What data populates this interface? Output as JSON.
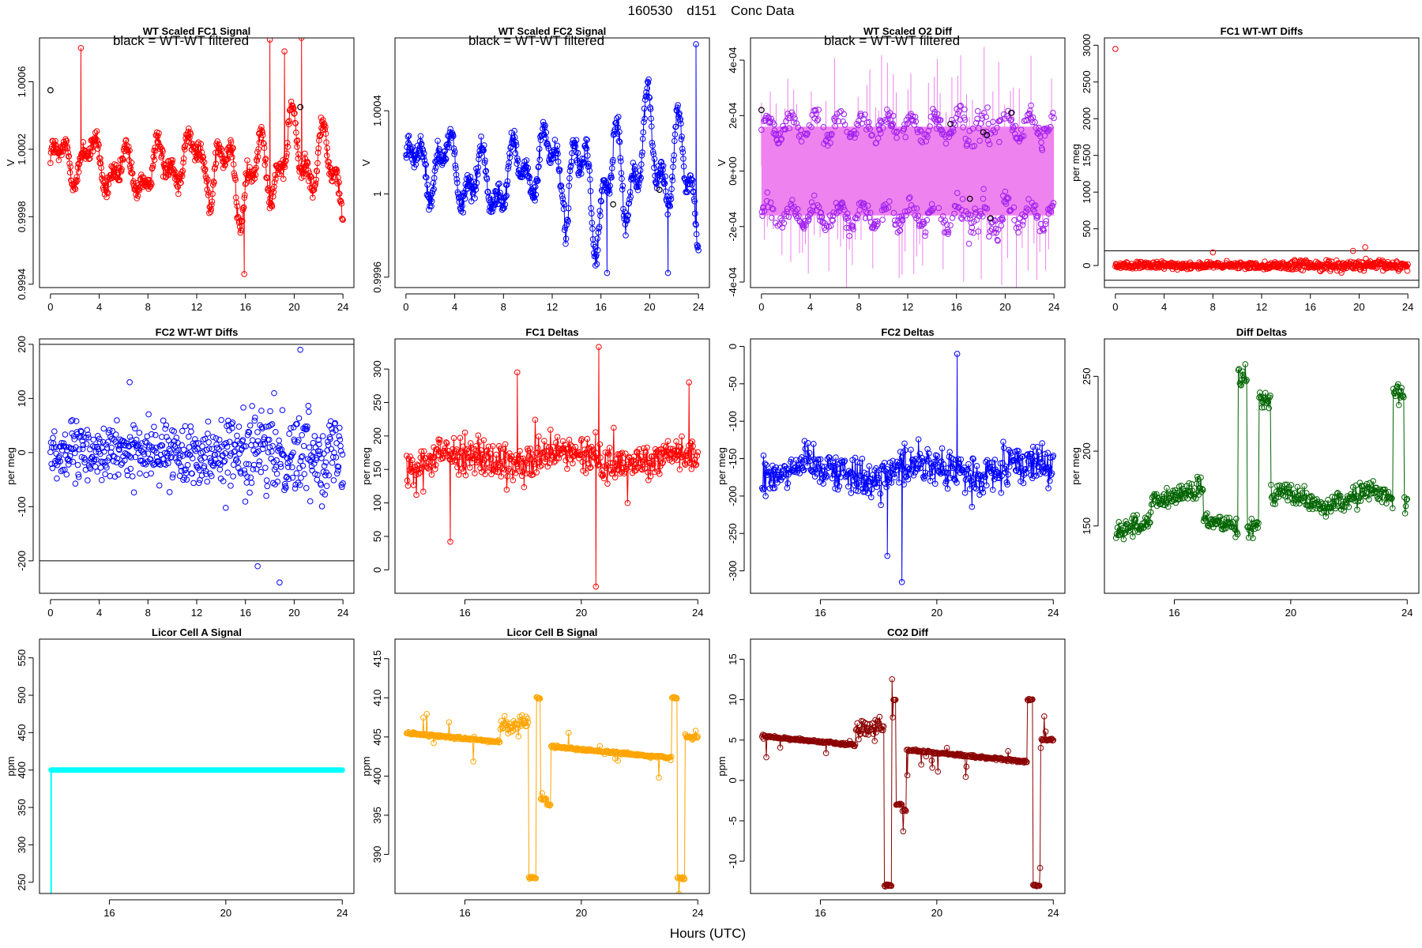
{
  "figure": {
    "title_parts": [
      "160530",
      "d151",
      "Conc Data"
    ],
    "xlabel": "Hours (UTC)"
  },
  "chart_data": [
    {
      "id": "p1",
      "type": "scatter",
      "title": "WT Scaled FC1 Signal",
      "annotation": "black = WT-WT filtered",
      "ylabel": "V",
      "color": "#ff0000",
      "filtered_color": "#000000",
      "xlim": [
        -0.9,
        24.9
      ],
      "ylim": [
        0.99938,
        1.00086
      ],
      "xticks": [
        0,
        4,
        8,
        12,
        16,
        20,
        24
      ],
      "yticks": [
        0.9994,
        0.9998,
        1.0002,
        1.0006
      ],
      "series": {
        "style": "osc",
        "x_start": 0,
        "x_end": 24,
        "n": 600,
        "base": 1.0001,
        "amp": 0.00022,
        "noise": 6e-05,
        "spikes": [
          [
            2.5,
            1.0008
          ],
          [
            18,
            1.00085
          ],
          [
            20.6,
            1.00086
          ],
          [
            19.2,
            1.00078
          ],
          [
            15.9,
            0.99946
          ]
        ]
      },
      "filtered_points": [
        [
          0,
          1.00055
        ],
        [
          20.5,
          1.00045
        ]
      ],
      "hlines": []
    },
    {
      "id": "p2",
      "type": "scatter",
      "title": "WT Scaled FC2 Signal",
      "annotation": "black = WT-WT filtered",
      "ylabel": "V",
      "color": "#0000ff",
      "filtered_color": "#000000",
      "xlim": [
        -0.9,
        24.9
      ],
      "ylim": [
        0.99955,
        1.00075
      ],
      "xticks": [
        0,
        4,
        8,
        12,
        16,
        20,
        24
      ],
      "yticks": [
        0.9996,
        1.0,
        1.0004
      ],
      "series": {
        "style": "osc",
        "x_start": 0,
        "x_end": 24,
        "n": 600,
        "base": 1.0001,
        "amp": 0.00025,
        "noise": 5e-05,
        "spikes": [
          [
            23.8,
            1.00072
          ],
          [
            16.5,
            0.99962
          ],
          [
            21.5,
            0.99962
          ]
        ]
      },
      "filtered_points": [
        [
          17,
          0.99995
        ],
        [
          20.8,
          1.00002
        ]
      ],
      "hlines": []
    },
    {
      "id": "p3",
      "type": "scatter",
      "title": "WT Scaled O2 Diff",
      "annotation": "black = WT-WT filtered",
      "ylabel": "V",
      "color": "#a020f0",
      "filtered_color": "#000000",
      "band_color": "#ee82ee",
      "xlim": [
        -0.9,
        24.9
      ],
      "ylim": [
        -0.00042,
        0.00048
      ],
      "xticks": [
        0,
        4,
        8,
        12,
        16,
        20,
        24
      ],
      "yticks": [
        -0.0004,
        -0.0002,
        0,
        0.0002,
        0.0004
      ],
      "ytick_labels": [
        "-4e-04",
        "-2e-04",
        "0e+00",
        "2e-04",
        "4e-04"
      ],
      "series": {
        "style": "band",
        "x_start": 0,
        "x_end": 24,
        "n": 600,
        "upper": 0.00016,
        "lower": -0.00016,
        "noise": 3e-05
      },
      "filtered_points": [
        [
          0,
          0.00022
        ],
        [
          15.5,
          0.00017
        ],
        [
          18.2,
          0.00014
        ],
        [
          18.5,
          0.00013
        ],
        [
          20.5,
          0.00021
        ],
        [
          17.1,
          -0.0001
        ],
        [
          18.8,
          -0.00017
        ]
      ],
      "hlines": []
    },
    {
      "id": "p4",
      "type": "scatter",
      "title": "FC1 WT-WT Diffs",
      "ylabel": "per meg",
      "color": "#ff0000",
      "xlim": [
        -0.9,
        24.9
      ],
      "ylim": [
        -300,
        3100
      ],
      "xticks": [
        0,
        4,
        8,
        12,
        16,
        20,
        24
      ],
      "yticks": [
        0,
        500,
        1000,
        1500,
        2000,
        2500,
        3000
      ],
      "series": {
        "style": "scatter",
        "x_start": 0,
        "x_end": 24,
        "n": 600,
        "base": 0,
        "amp": 0,
        "noise": 45,
        "spikes": [
          [
            0,
            2950
          ],
          [
            8,
            180
          ],
          [
            20.5,
            250
          ],
          [
            19.5,
            200
          ]
        ]
      },
      "hlines": [
        200,
        -200
      ]
    },
    {
      "id": "p5",
      "type": "scatter",
      "title": "FC2 WT-WT Diffs",
      "ylabel": "per meg",
      "color": "#0000ff",
      "xlim": [
        -0.9,
        24.9
      ],
      "ylim": [
        -260,
        210
      ],
      "xticks": [
        0,
        4,
        8,
        12,
        16,
        20,
        24
      ],
      "yticks": [
        -200,
        -100,
        0,
        100,
        200
      ],
      "series": {
        "style": "scatter",
        "x_start": 0,
        "x_end": 24,
        "n": 600,
        "base": 0,
        "amp": 0,
        "noise": 50,
        "spikes": [
          [
            20.5,
            190
          ],
          [
            18.8,
            -240
          ],
          [
            17,
            -210
          ],
          [
            6.5,
            130
          ]
        ]
      },
      "hlines": [
        200,
        -200
      ]
    },
    {
      "id": "p6",
      "type": "line",
      "title": "FC1 Deltas",
      "ylabel": "per meg",
      "color": "#ff0000",
      "xlim": [
        13.6,
        24.4
      ],
      "ylim": [
        -35,
        345
      ],
      "xticks": [
        16,
        20,
        24
      ],
      "yticks": [
        0,
        50,
        100,
        150,
        200,
        250,
        300
      ],
      "series": {
        "style": "line",
        "x_start": 14,
        "x_end": 24,
        "n": 420,
        "base": 165,
        "amp": 10,
        "noise": 25,
        "spikes": [
          [
            20.6,
            333
          ],
          [
            20.5,
            -25
          ],
          [
            17.8,
            295
          ],
          [
            15.5,
            42
          ],
          [
            23.7,
            280
          ]
        ]
      },
      "hlines": []
    },
    {
      "id": "p7",
      "type": "line",
      "title": "FC2 Deltas",
      "ylabel": "per meg",
      "color": "#0000ff",
      "xlim": [
        13.6,
        24.4
      ],
      "ylim": [
        -330,
        10
      ],
      "xticks": [
        16,
        20,
        24
      ],
      "yticks": [
        -300,
        -250,
        -200,
        -150,
        -100,
        -50,
        0
      ],
      "series": {
        "style": "line",
        "x_start": 14,
        "x_end": 24,
        "n": 420,
        "base": -165,
        "amp": 10,
        "noise": 25,
        "spikes": [
          [
            20.7,
            -10
          ],
          [
            18.8,
            -315
          ],
          [
            18.3,
            -280
          ]
        ]
      },
      "hlines": []
    },
    {
      "id": "p8",
      "type": "line",
      "title": "Diff Deltas",
      "ylabel": "per meg",
      "color": "#006400",
      "xlim": [
        13.6,
        24.4
      ],
      "ylim": [
        105,
        275
      ],
      "xticks": [
        16,
        20,
        24
      ],
      "yticks": [
        150,
        200,
        250
      ],
      "series": {
        "style": "diff",
        "x_start": 14,
        "x_end": 24,
        "n": 420
      },
      "hlines": []
    },
    {
      "id": "p9",
      "type": "line",
      "title": "Licor Cell A Signal",
      "ylabel": "ppm",
      "color": "#00ffff",
      "xlim": [
        13.6,
        24.4
      ],
      "ylim": [
        235,
        575
      ],
      "xticks": [
        16,
        20,
        24
      ],
      "yticks": [
        250,
        300,
        350,
        400,
        450,
        500,
        550
      ],
      "series": {
        "style": "flat",
        "x_start": 14,
        "x_end": 24,
        "n": 420,
        "base": 400,
        "drop": 235
      },
      "hlines": []
    },
    {
      "id": "p10",
      "type": "line",
      "title": "Licor Cell B Signal",
      "ylabel": "ppm",
      "color": "#ffa500",
      "xlim": [
        13.6,
        24.4
      ],
      "ylim": [
        385,
        417.5
      ],
      "xticks": [
        16,
        20,
        24
      ],
      "yticks": [
        390,
        395,
        400,
        405,
        410,
        415
      ],
      "series": {
        "style": "licor",
        "x_start": 14,
        "x_end": 24,
        "n": 420,
        "offset": 400
      },
      "hlines": []
    },
    {
      "id": "p11",
      "type": "line",
      "title": "CO2 Diff",
      "ylabel": "ppm",
      "color": "#8b0000",
      "xlim": [
        13.6,
        24.4
      ],
      "ylim": [
        -14,
        17.5
      ],
      "xticks": [
        16,
        20,
        24
      ],
      "yticks": [
        -10,
        -5,
        0,
        5,
        10,
        15
      ],
      "series": {
        "style": "licor",
        "x_start": 14,
        "x_end": 24,
        "n": 420,
        "offset": 0
      },
      "hlines": []
    }
  ]
}
